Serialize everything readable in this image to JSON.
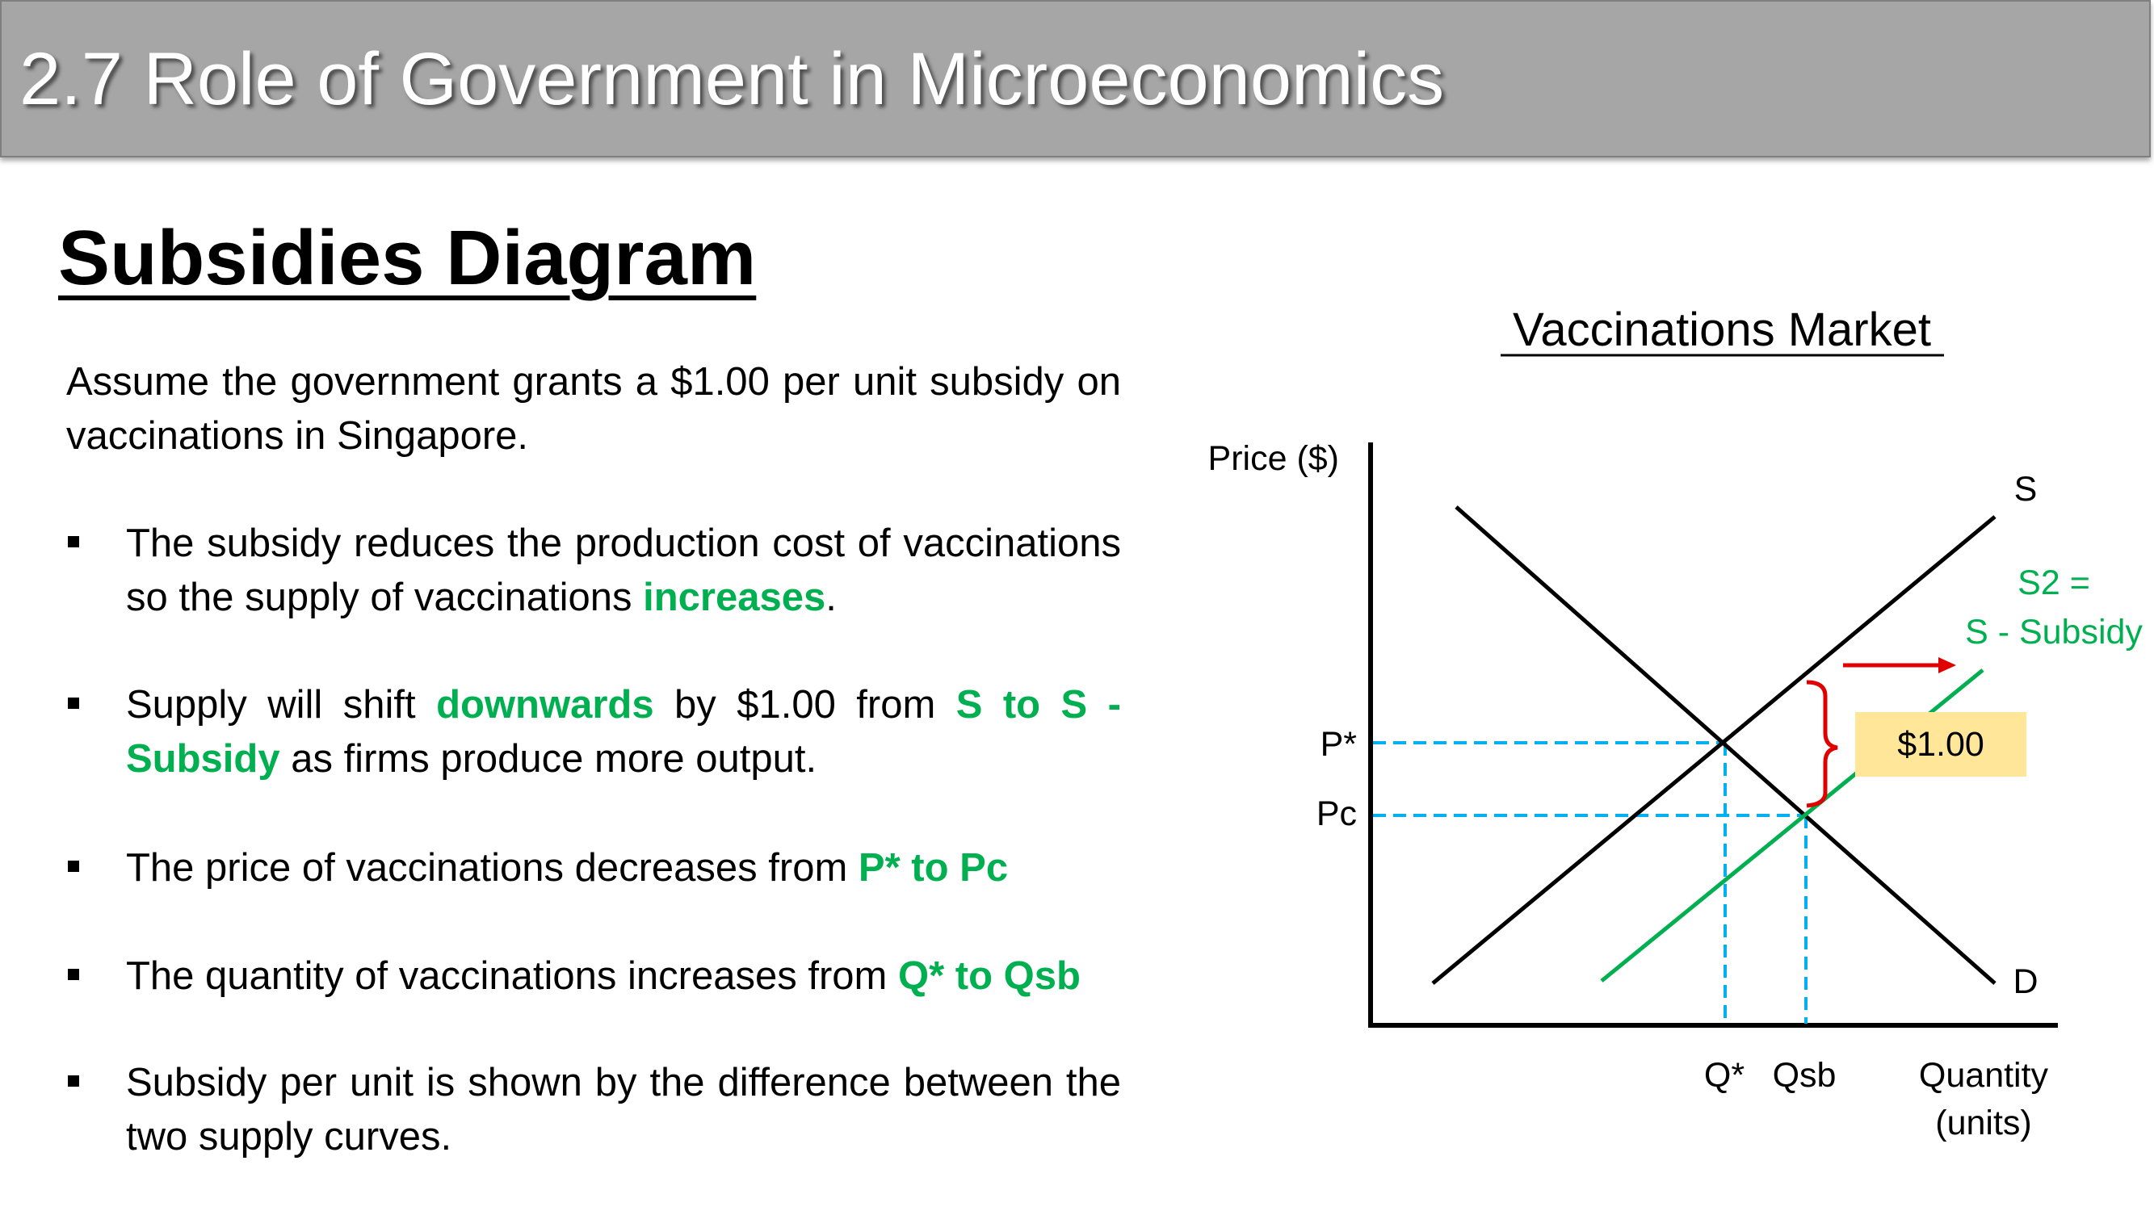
{
  "header": {
    "title": "2.7 Role of Government in Microeconomics"
  },
  "section_title": "Subsidies Diagram",
  "intro": "Assume the government grants a $1.00 per unit subsidy on vaccinations in Singapore.",
  "bullets": [
    {
      "pre": "The subsidy reduces the production cost of vaccinations so the supply of vaccinations ",
      "hl": "increases",
      "post": "."
    },
    {
      "pre": "Supply will shift ",
      "hl": "downwards",
      "mid": " by $1.00 from ",
      "hl2": "S to S - Subsidy",
      "post": " as firms produce more output."
    },
    {
      "pre": "The price of vaccinations decreases from ",
      "hl": "P* to Pc",
      "post": ""
    },
    {
      "pre": "The quantity of vaccinations increases from ",
      "hl": "Q* to Qsb",
      "post": ""
    },
    {
      "pre": "Subsidy per unit is shown by the difference between the two supply curves.",
      "hl": "",
      "post": ""
    }
  ],
  "colors": {
    "header_bg": "#a6a6a6",
    "highlight": "#00b050",
    "guide": "#00b0f0",
    "arrow": "#e00000",
    "callout": "#ffe699"
  },
  "diagram": {
    "title": "Vaccinations Market",
    "y_axis_label": "Price ($)",
    "x_axis_label_line1": "Quantity",
    "x_axis_label_line2": "(units)",
    "supply_label": "S",
    "demand_label": "D",
    "supply2_label_line1": "S2 =",
    "supply2_label_line2": "S - Subsidy",
    "price_labels": [
      "P*",
      "Pc"
    ],
    "quantity_labels": [
      "Q*",
      "Qsb"
    ],
    "subsidy_value": "$1.00"
  }
}
